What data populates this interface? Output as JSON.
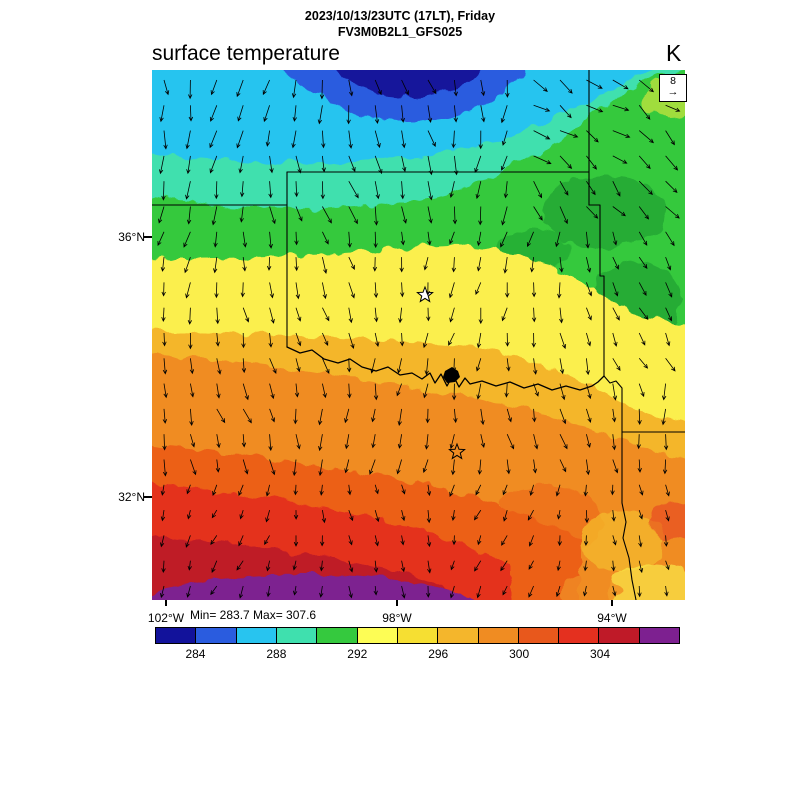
{
  "header": {
    "line1": "2023/10/13/23UTC (17LT), Friday",
    "line2": "FV3M0B2L1_GFS025"
  },
  "plot": {
    "title": "surface temperature",
    "unit": "K",
    "min_max": "Min= 283.7 Max= 307.6",
    "wind_ref_value": "8",
    "wind_ref_arrow": "→"
  },
  "axes": {
    "lat": [
      {
        "label": "36°N"
      },
      {
        "label": "32°N"
      }
    ],
    "lon": [
      {
        "label": "102°W"
      },
      {
        "label": "98°W"
      },
      {
        "label": "94°W"
      }
    ]
  },
  "colorbar": {
    "tick_labels": [
      "284",
      "288",
      "292",
      "296",
      "300",
      "304"
    ],
    "colors": [
      "#12129b",
      "#2a5cdf",
      "#28c4ef",
      "#3fe0ae",
      "#35c93e",
      "#fdfd55",
      "#f6df32",
      "#f4b62c",
      "#f08c22",
      "#e8581c",
      "#e4301f",
      "#bf1a28",
      "#7d2090"
    ]
  },
  "chart_data": {
    "type": "heatmap",
    "title": "surface temperature",
    "units": "K",
    "valid_time": "2023/10/13/23UTC (17LT), Friday",
    "model": "FV3M0B2L1_GFS025",
    "min": 283.7,
    "max": 307.6,
    "colorbar_tick_values": [
      284,
      288,
      292,
      296,
      300,
      304
    ],
    "colorbar_bin_edges": [
      282,
      284,
      286,
      288,
      290,
      292,
      294,
      296,
      298,
      300,
      302,
      304,
      306,
      308
    ],
    "x_tick_labels": [
      "102°W",
      "98°W",
      "94°W"
    ],
    "y_tick_labels": [
      "36°N",
      "32°N"
    ],
    "region": "Texas / Oklahoma and surrounding states",
    "overlay": {
      "wind_vectors": true,
      "reference_speed": 8
    },
    "pattern_summary": "Cold air (283-288 K, dark blue/cyan) across the far north with coldest core top-center; aquamarine-green 288-292 K band across the Oklahoma panhandle and eastern Oklahoma; yellow 292-296 K mid band through central Oklahoma/north Texas; orange 296-302 K over central Texas; red 302-306 K and purple >306 K across the far south/southwest; northerly wind vectors over most of the domain"
  }
}
